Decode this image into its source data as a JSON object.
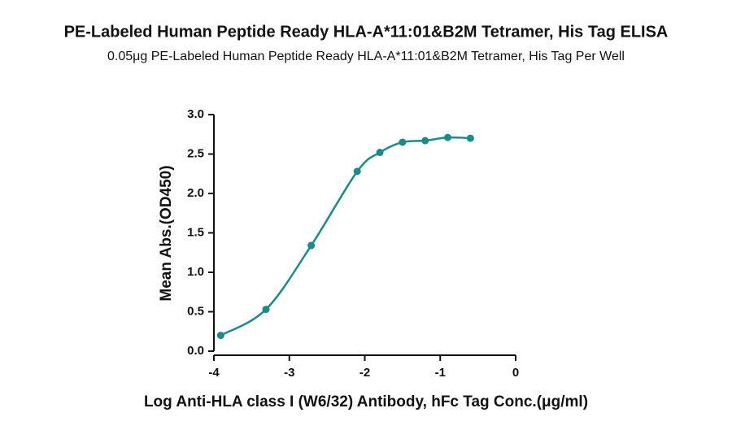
{
  "chart_data": {
    "type": "scatter",
    "title": "PE-Labeled Human Peptide Ready HLA-A*11:01&B2M Tetramer, His Tag ELISA",
    "subtitle": "0.05μg PE-Labeled Human Peptide Ready HLA-A*11:01&B2M Tetramer, His Tag Per Well",
    "x_label": "Log Anti-HLA class I (W6/32) Antibody, hFc Tag Conc.(μg/ml)",
    "y_label": "Mean Abs.(OD450)",
    "x": [
      -3.91,
      -3.31,
      -2.71,
      -2.1,
      -1.8,
      -1.5,
      -1.2,
      -0.9,
      -0.6
    ],
    "values": [
      0.2,
      0.53,
      1.34,
      2.28,
      2.52,
      2.65,
      2.67,
      2.71,
      2.7
    ],
    "color": "#1b8a8c",
    "xlim": [
      -4,
      0
    ],
    "xticks": [
      -4,
      -3,
      -2,
      -1,
      0
    ],
    "ylim": [
      0,
      3
    ],
    "yticks": [
      {
        "value": 0,
        "label": "0.0"
      },
      0.5,
      {
        "value": 1,
        "label": "1.0"
      },
      1.5,
      {
        "value": 2,
        "label": "2.0"
      },
      2.5,
      {
        "value": 3,
        "label": "3.0"
      }
    ]
  }
}
